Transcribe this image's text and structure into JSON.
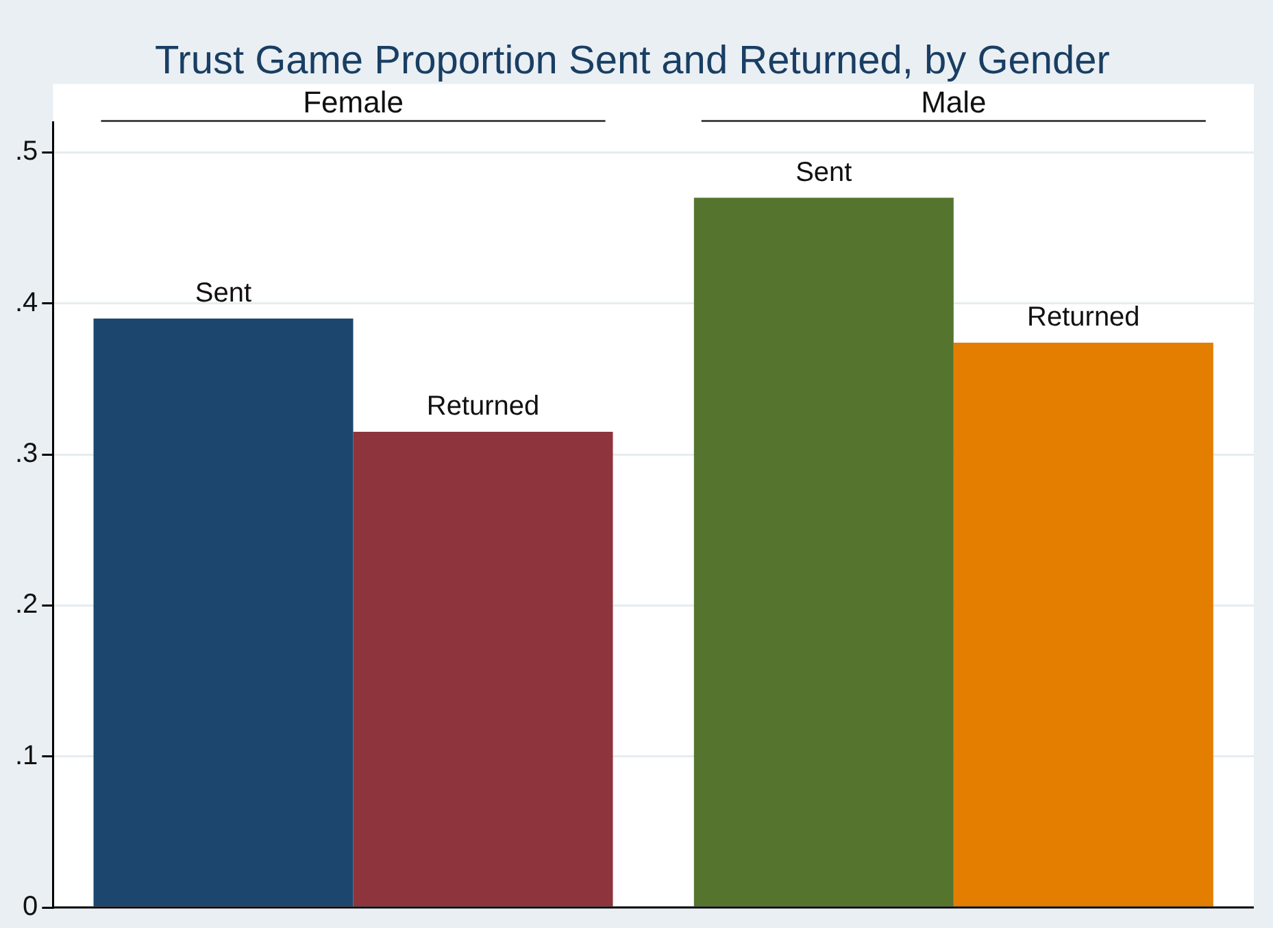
{
  "chart_data": {
    "type": "bar",
    "title": "Trust Game Proportion Sent and Returned, by Gender",
    "categories": [
      "Female",
      "Male"
    ],
    "series": [
      {
        "name": "Sent",
        "colors": [
          "#1c466e",
          "#55752f"
        ],
        "values": [
          0.39,
          0.47
        ]
      },
      {
        "name": "Returned",
        "colors": [
          "#8e343c",
          "#e37e00"
        ],
        "values": [
          0.315,
          0.374
        ]
      }
    ],
    "ylim": [
      0,
      0.52
    ],
    "yticks": [
      {
        "value": 0,
        "label": "0"
      },
      {
        "value": 0.1,
        "label": ".1"
      },
      {
        "value": 0.2,
        "label": ".2"
      },
      {
        "value": 0.3,
        "label": ".3"
      },
      {
        "value": 0.4,
        "label": ".4"
      },
      {
        "value": 0.5,
        "label": ".5"
      }
    ],
    "grid": "y",
    "legend": false
  }
}
